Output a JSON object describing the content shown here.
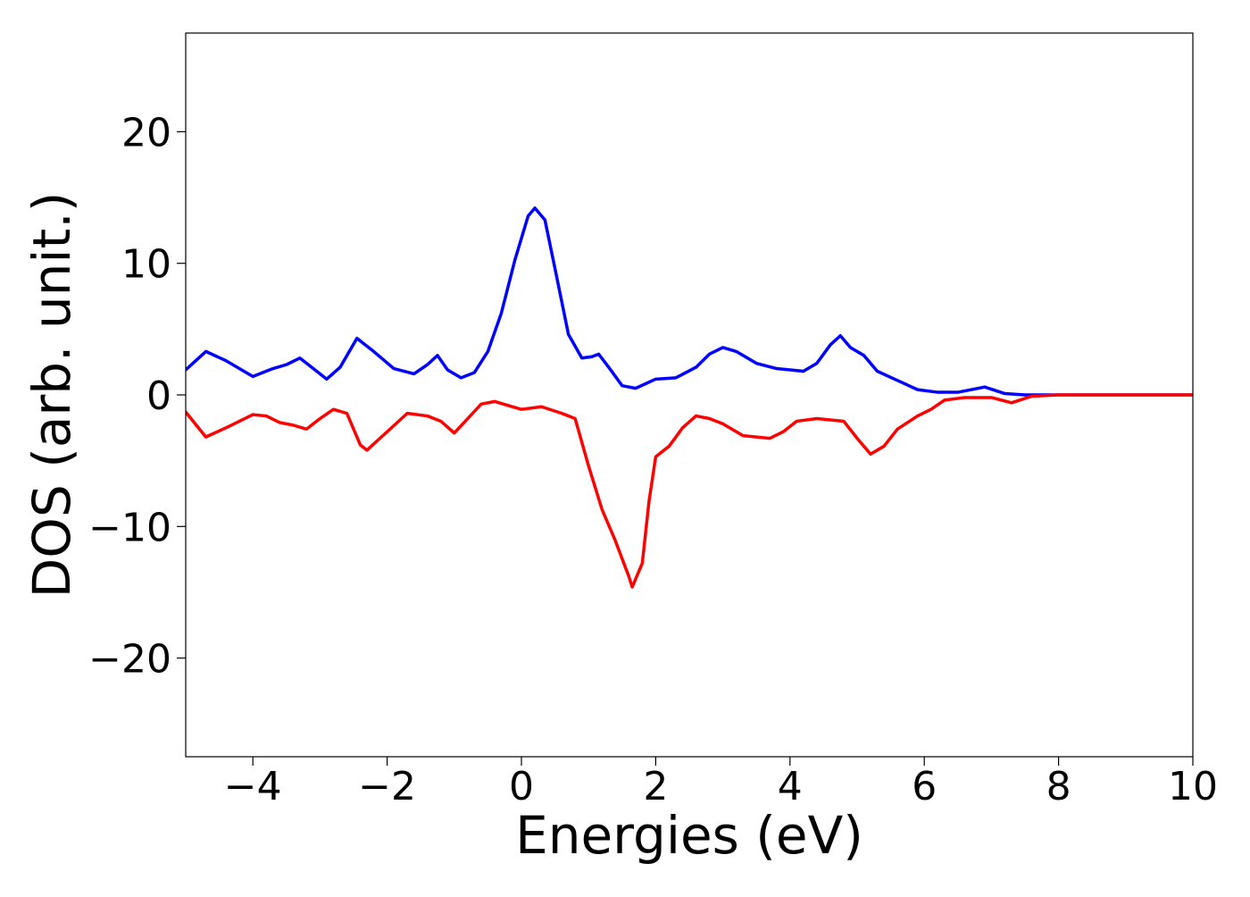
{
  "chart_data": {
    "type": "line",
    "xlabel": "Energies (eV)",
    "ylabel": "DOS (arb. unit.)",
    "xlim": [
      -5,
      10
    ],
    "ylim": [
      -27.5,
      27.5
    ],
    "xticks": [
      {
        "value": -4,
        "label": "−4"
      },
      {
        "value": -2,
        "label": "−2"
      },
      0,
      2,
      4,
      6,
      8,
      10
    ],
    "yticks": [
      {
        "value": -20,
        "label": "−20"
      },
      {
        "value": -10,
        "label": "−10"
      },
      0,
      10,
      20
    ],
    "grid": false,
    "series": [
      {
        "color": "#0000ff",
        "x": [
          -5,
          -4.7,
          -4.4,
          -4.0,
          -3.7,
          -3.5,
          -3.3,
          -3.1,
          -2.9,
          -2.7,
          -2.45,
          -2.2,
          -1.9,
          -1.6,
          -1.4,
          -1.25,
          -1.1,
          -0.9,
          -0.7,
          -0.5,
          -0.3,
          -0.1,
          0.1,
          0.2,
          0.35,
          0.5,
          0.7,
          0.9,
          1.05,
          1.15,
          1.3,
          1.5,
          1.7,
          2.0,
          2.3,
          2.6,
          2.8,
          3.0,
          3.2,
          3.5,
          3.8,
          4.2,
          4.4,
          4.6,
          4.75,
          4.9,
          5.1,
          5.3,
          5.6,
          5.9,
          6.2,
          6.5,
          6.9,
          7.2,
          7.5,
          8,
          9,
          10
        ],
        "values": [
          1.9,
          3.3,
          2.6,
          1.4,
          2.0,
          2.3,
          2.8,
          2.0,
          1.2,
          2.1,
          4.3,
          3.3,
          2.0,
          1.6,
          2.3,
          3.0,
          1.9,
          1.3,
          1.7,
          3.3,
          6.2,
          10.2,
          13.6,
          14.2,
          13.3,
          9.6,
          4.6,
          2.8,
          2.9,
          3.1,
          2.1,
          0.7,
          0.5,
          1.2,
          1.3,
          2.1,
          3.1,
          3.6,
          3.3,
          2.4,
          2.0,
          1.8,
          2.4,
          3.8,
          4.5,
          3.6,
          3.0,
          1.8,
          1.1,
          0.4,
          0.2,
          0.2,
          0.6,
          0.1,
          0,
          0,
          0,
          0
        ]
      },
      {
        "color": "#ff0000",
        "x": [
          -5,
          -4.7,
          -4.4,
          -4.0,
          -3.8,
          -3.6,
          -3.4,
          -3.2,
          -3.0,
          -2.8,
          -2.6,
          -2.4,
          -2.3,
          -2.0,
          -1.7,
          -1.4,
          -1.2,
          -1.0,
          -0.8,
          -0.6,
          -0.4,
          -0.2,
          0.0,
          0.3,
          0.6,
          0.8,
          1.0,
          1.2,
          1.4,
          1.6,
          1.65,
          1.8,
          1.9,
          2.0,
          2.2,
          2.4,
          2.6,
          2.8,
          3.0,
          3.3,
          3.7,
          3.9,
          4.1,
          4.4,
          4.8,
          5.0,
          5.2,
          5.4,
          5.6,
          5.9,
          6.1,
          6.3,
          6.6,
          7.0,
          7.3,
          7.6,
          8,
          9,
          10
        ],
        "values": [
          -1.3,
          -3.2,
          -2.5,
          -1.5,
          -1.6,
          -2.1,
          -2.3,
          -2.6,
          -1.8,
          -1.1,
          -1.4,
          -3.8,
          -4.2,
          -2.8,
          -1.4,
          -1.6,
          -2.0,
          -2.9,
          -1.8,
          -0.7,
          -0.5,
          -0.8,
          -1.1,
          -0.9,
          -1.4,
          -1.8,
          -5.4,
          -8.7,
          -11.1,
          -13.8,
          -14.6,
          -12.8,
          -8.1,
          -4.7,
          -3.9,
          -2.5,
          -1.6,
          -1.8,
          -2.2,
          -3.1,
          -3.3,
          -2.8,
          -2.0,
          -1.8,
          -2.0,
          -3.3,
          -4.5,
          -3.9,
          -2.6,
          -1.6,
          -1.1,
          -0.4,
          -0.2,
          -0.2,
          -0.6,
          -0.1,
          0,
          0,
          0
        ]
      }
    ]
  }
}
